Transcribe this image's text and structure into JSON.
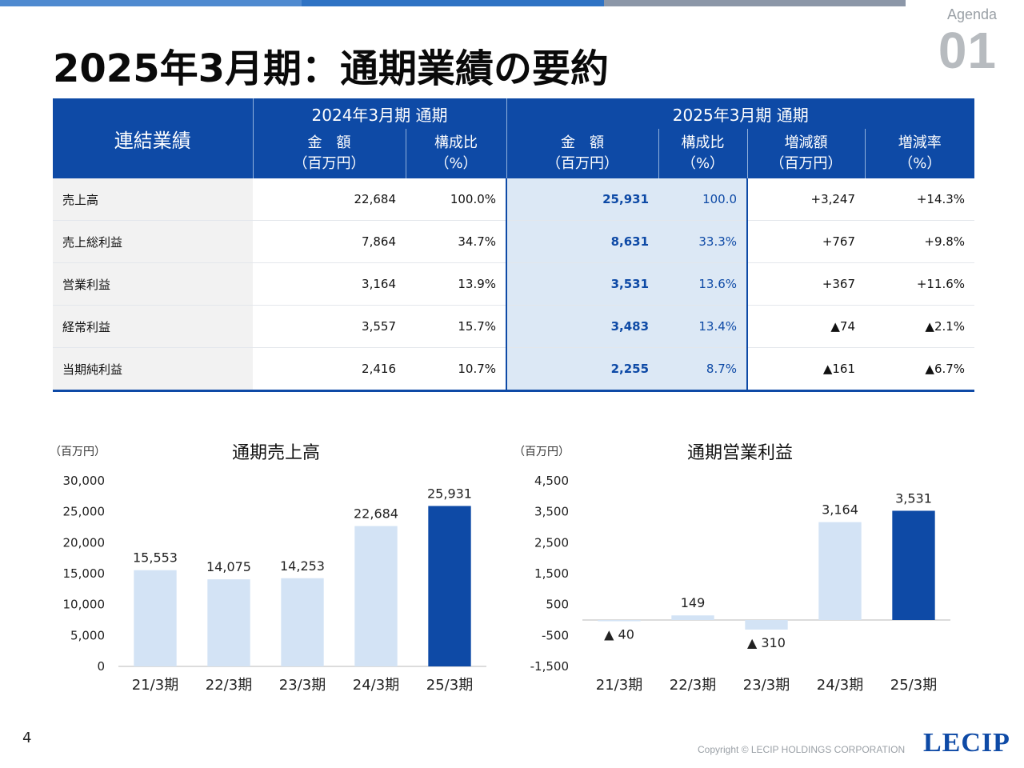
{
  "colors": {
    "primary": "#0e4aa6",
    "light_bar": "#d3e3f5",
    "highlight_cell": "#dce8f5",
    "topbar": [
      "#4f8ad0",
      "#2f73c4",
      "#8c97a8"
    ]
  },
  "agenda": {
    "label": "Agenda",
    "number": "01"
  },
  "title": "2025年3月期：通期業績の要約",
  "table": {
    "header_row_label": "連結業績",
    "period_prev": "2024年3月期 通期",
    "period_curr": "2025年3月期 通期",
    "col_amount": [
      "金　額",
      "（百万円）"
    ],
    "col_ratio": [
      "構成比",
      "（%）"
    ],
    "col_diff": [
      "増減額",
      "（百万円）"
    ],
    "col_rate": [
      "増減率",
      "（%）"
    ],
    "rows": [
      {
        "label": "売上高",
        "prev_amount": "22,684",
        "prev_ratio": "100.0%",
        "curr_amount": "25,931",
        "curr_ratio": "100.0",
        "diff": "+3,247",
        "rate": "+14.3%"
      },
      {
        "label": "売上総利益",
        "prev_amount": "7,864",
        "prev_ratio": "34.7%",
        "curr_amount": "8,631",
        "curr_ratio": "33.3%",
        "diff": "+767",
        "rate": "+9.8%"
      },
      {
        "label": "営業利益",
        "prev_amount": "3,164",
        "prev_ratio": "13.9%",
        "curr_amount": "3,531",
        "curr_ratio": "13.6%",
        "diff": "+367",
        "rate": "+11.6%"
      },
      {
        "label": "経常利益",
        "prev_amount": "3,557",
        "prev_ratio": "15.7%",
        "curr_amount": "3,483",
        "curr_ratio": "13.4%",
        "diff": "▲74",
        "rate": "▲2.1%"
      },
      {
        "label": "当期純利益",
        "prev_amount": "2,416",
        "prev_ratio": "10.7%",
        "curr_amount": "2,255",
        "curr_ratio": "8.7%",
        "diff": "▲161",
        "rate": "▲6.7%"
      }
    ]
  },
  "chart_data": [
    {
      "type": "bar",
      "title": "通期売上高",
      "unit": "（百万円）",
      "categories": [
        "21/3期",
        "22/3期",
        "23/3期",
        "24/3期",
        "25/3期"
      ],
      "values": [
        15553,
        14075,
        14253,
        22684,
        25931
      ],
      "labels": [
        "15,553",
        "14,075",
        "14,253",
        "22,684",
        "25,931"
      ],
      "highlight_index": 4,
      "ylim": [
        0,
        30000
      ],
      "yticks": [
        0,
        5000,
        10000,
        15000,
        20000,
        25000,
        30000
      ],
      "ytick_labels": [
        "0",
        "5,000",
        "10,000",
        "15,000",
        "20,000",
        "25,000",
        "30,000"
      ],
      "grid": false
    },
    {
      "type": "bar",
      "title": "通期営業利益",
      "unit": "（百万円）",
      "categories": [
        "21/3期",
        "22/3期",
        "23/3期",
        "24/3期",
        "25/3期"
      ],
      "values": [
        -40,
        149,
        -310,
        3164,
        3531
      ],
      "labels": [
        "▲ 40",
        "149",
        "▲ 310",
        "3,164",
        "3,531"
      ],
      "highlight_index": 4,
      "ylim": [
        -1500,
        4500
      ],
      "yticks": [
        -1500,
        -500,
        500,
        1500,
        2500,
        3500,
        4500
      ],
      "ytick_labels": [
        "-1,500",
        "-500",
        "500",
        "1,500",
        "2,500",
        "3,500",
        "4,500"
      ],
      "grid": false
    }
  ],
  "footer": {
    "page_number": "4",
    "copyright": "Copyright © LECIP HOLDINGS CORPORATION",
    "logo": "LECIP"
  }
}
